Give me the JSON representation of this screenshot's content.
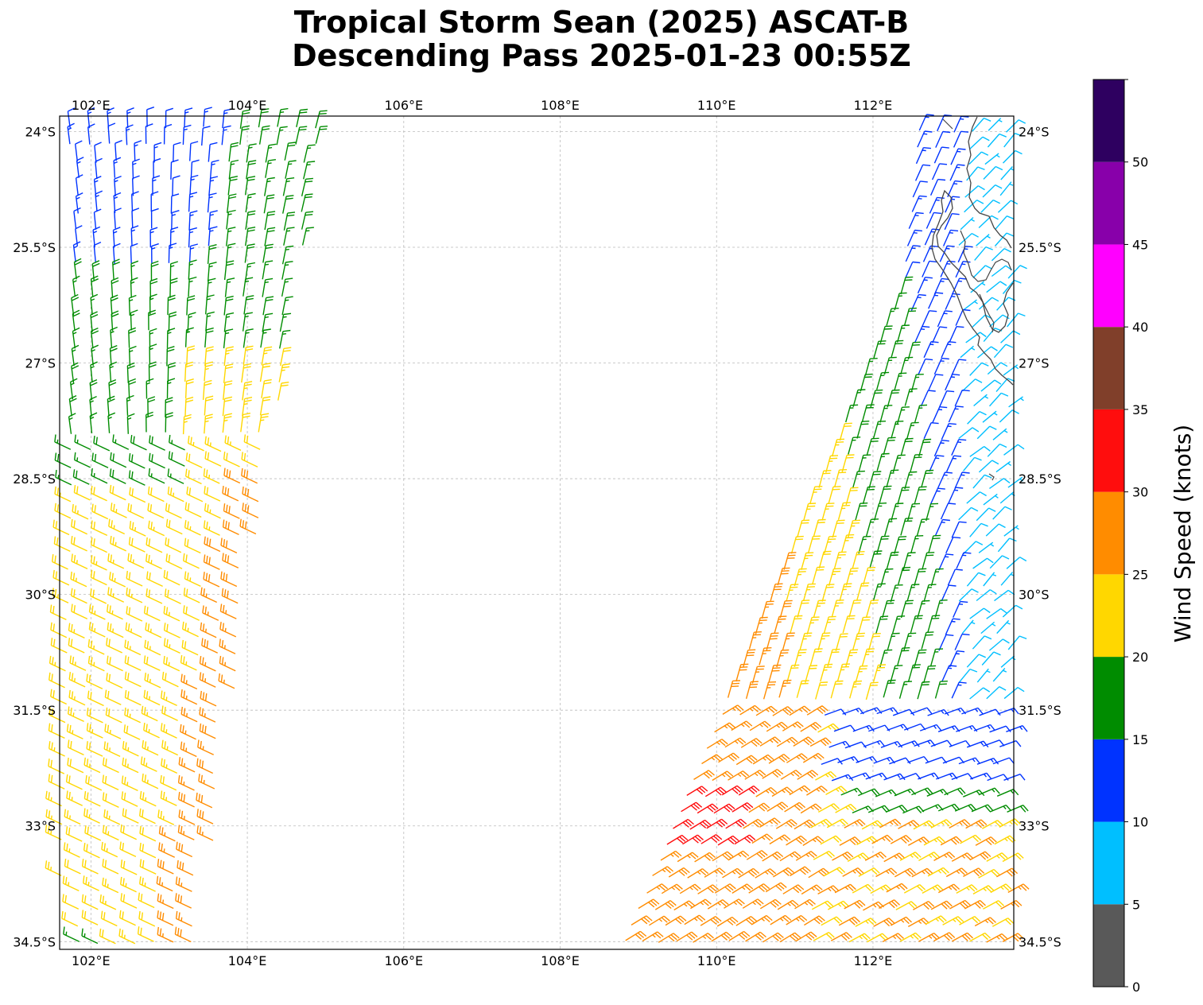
{
  "title": {
    "line1": "Tropical Storm Sean (2025) ASCAT-B",
    "line2": "Descending Pass 2025-01-23 00:55Z"
  },
  "map": {
    "lon_range": [
      101.6,
      113.8
    ],
    "lat_range": [
      -34.6,
      -23.8
    ],
    "lon_ticks": [
      {
        "value": 102,
        "label": "102°E"
      },
      {
        "value": 104,
        "label": "104°E"
      },
      {
        "value": 106,
        "label": "106°E"
      },
      {
        "value": 108,
        "label": "108°E"
      },
      {
        "value": 110,
        "label": "110°E"
      },
      {
        "value": 112,
        "label": "112°E"
      }
    ],
    "lat_ticks": [
      {
        "value": -24,
        "label": "24°S"
      },
      {
        "value": -25.5,
        "label": "25.5°S"
      },
      {
        "value": -27,
        "label": "27°S"
      },
      {
        "value": -28.5,
        "label": "28.5°S"
      },
      {
        "value": -30,
        "label": "30°S"
      },
      {
        "value": -31.5,
        "label": "31.5°S"
      },
      {
        "value": -33,
        "label": "33°S"
      },
      {
        "value": -34.5,
        "label": "34.5°S"
      }
    ],
    "gridlines": true,
    "coastline": "Western Australia (Shark Bay region), top-right corner",
    "swaths": [
      {
        "name": "west",
        "lon_range_north": [
          101.8,
          105.0
        ],
        "lon_range_south": [
          101.6,
          103.6
        ]
      },
      {
        "name": "east",
        "lon_range_north": [
          112.6,
          113.8
        ],
        "lon_range_south": [
          108.8,
          113.8
        ]
      }
    ]
  },
  "colorbar": {
    "label": "Wind Speed (knots)",
    "tick_values": [
      0,
      5,
      10,
      15,
      20,
      25,
      30,
      35,
      40,
      45,
      50
    ],
    "bins": [
      {
        "from": 0,
        "to": 5,
        "color": "#595959"
      },
      {
        "from": 5,
        "to": 10,
        "color": "#00bfff"
      },
      {
        "from": 10,
        "to": 15,
        "color": "#0033ff"
      },
      {
        "from": 15,
        "to": 20,
        "color": "#008c00"
      },
      {
        "from": 20,
        "to": 25,
        "color": "#ffd700"
      },
      {
        "from": 25,
        "to": 30,
        "color": "#ff8c00"
      },
      {
        "from": 30,
        "to": 35,
        "color": "#ff0d0d"
      },
      {
        "from": 35,
        "to": 40,
        "color": "#803f2a"
      },
      {
        "from": 40,
        "to": 45,
        "color": "#ff00ff"
      },
      {
        "from": 45,
        "to": 50,
        "color": "#8800aa"
      },
      {
        "from": 50,
        "to": 55,
        "color": "#2e0060"
      }
    ]
  }
}
